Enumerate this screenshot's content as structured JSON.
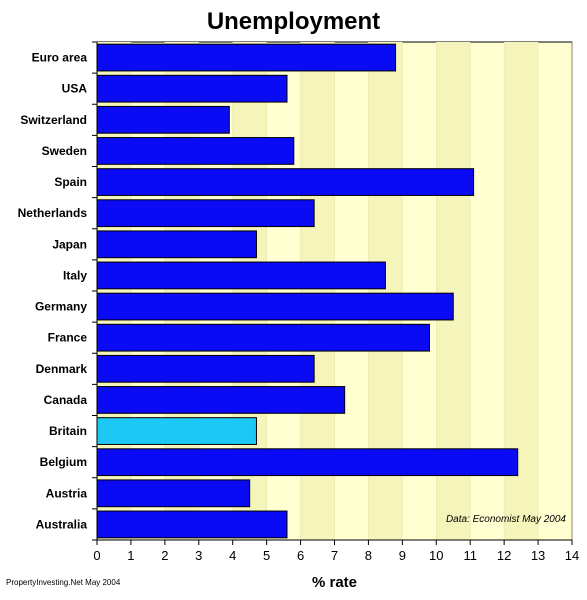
{
  "chart_data": {
    "type": "bar",
    "orientation": "horizontal",
    "title": "Unemployment",
    "xlabel": "% rate",
    "ylabel": "",
    "xlim": [
      0,
      14
    ],
    "ticks": [
      0,
      1,
      2,
      3,
      4,
      5,
      6,
      7,
      8,
      9,
      10,
      11,
      12,
      13,
      14
    ],
    "categories": [
      "Euro area",
      "USA",
      "Switzerland",
      "Sweden",
      "Spain",
      "Netherlands",
      "Japan",
      "Italy",
      "Germany",
      "France",
      "Denmark",
      "Canada",
      "Britain",
      "Belgium",
      "Austria",
      "Australia"
    ],
    "values": [
      8.8,
      5.6,
      3.9,
      5.8,
      11.1,
      6.4,
      4.7,
      8.5,
      10.5,
      9.8,
      6.4,
      7.3,
      4.7,
      12.4,
      4.5,
      5.6
    ],
    "highlight": "Britain",
    "grid": true,
    "source_note": "Data: Economist May 2004",
    "colors": {
      "bar": "#0a0af5",
      "highlight_bar": "#1ec8f5",
      "plot_bg": "#ffffd2",
      "grid_band": "#f5f5bb",
      "bar_outline": "#000000"
    }
  },
  "credit": "PropertyInvesting.Net May 2004"
}
